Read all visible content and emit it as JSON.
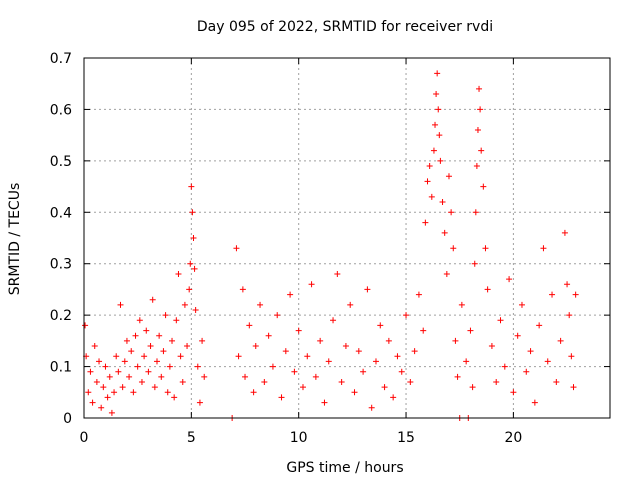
{
  "chart_data": {
    "type": "scatter",
    "title": "Day 095 of 2022, SRMTID for receiver rvdi",
    "xlabel": "GPS time / hours",
    "ylabel": "SRMTID / TECUs",
    "xlim": [
      0,
      24.5
    ],
    "ylim": [
      0,
      0.7
    ],
    "xticks": [
      0,
      5,
      10,
      15,
      20
    ],
    "yticks": [
      0,
      0.1,
      0.2,
      0.3,
      0.4,
      0.5,
      0.6,
      0.7
    ],
    "xtick_labels": [
      "0",
      "5",
      "10",
      "15",
      "20"
    ],
    "ytick_labels": [
      "0",
      "0.1",
      "0.2",
      "0.3",
      "0.4",
      "0.5",
      "0.6",
      "0.7"
    ],
    "grid": true,
    "marker": "+",
    "series": [
      {
        "name": "SRMTID",
        "color": "#ff0000",
        "points": [
          [
            0.05,
            0.18
          ],
          [
            0.1,
            0.12
          ],
          [
            0.2,
            0.05
          ],
          [
            0.3,
            0.09
          ],
          [
            0.4,
            0.03
          ],
          [
            0.5,
            0.14
          ],
          [
            0.6,
            0.07
          ],
          [
            0.7,
            0.11
          ],
          [
            0.8,
            0.02
          ],
          [
            0.9,
            0.06
          ],
          [
            1.0,
            0.1
          ],
          [
            1.1,
            0.04
          ],
          [
            1.2,
            0.08
          ],
          [
            1.3,
            0.01
          ],
          [
            1.4,
            0.05
          ],
          [
            1.5,
            0.12
          ],
          [
            1.6,
            0.09
          ],
          [
            1.7,
            0.22
          ],
          [
            1.8,
            0.06
          ],
          [
            1.9,
            0.11
          ],
          [
            2.0,
            0.15
          ],
          [
            2.1,
            0.08
          ],
          [
            2.2,
            0.13
          ],
          [
            2.3,
            0.05
          ],
          [
            2.4,
            0.16
          ],
          [
            2.5,
            0.1
          ],
          [
            2.6,
            0.19
          ],
          [
            2.7,
            0.07
          ],
          [
            2.8,
            0.12
          ],
          [
            2.9,
            0.17
          ],
          [
            3.0,
            0.09
          ],
          [
            3.1,
            0.14
          ],
          [
            3.2,
            0.23
          ],
          [
            3.3,
            0.06
          ],
          [
            3.4,
            0.11
          ],
          [
            3.5,
            0.16
          ],
          [
            3.6,
            0.08
          ],
          [
            3.7,
            0.13
          ],
          [
            3.8,
            0.2
          ],
          [
            3.9,
            0.05
          ],
          [
            4.0,
            0.1
          ],
          [
            4.1,
            0.15
          ],
          [
            4.2,
            0.04
          ],
          [
            4.3,
            0.19
          ],
          [
            4.4,
            0.28
          ],
          [
            4.5,
            0.12
          ],
          [
            4.6,
            0.07
          ],
          [
            4.7,
            0.22
          ],
          [
            4.8,
            0.14
          ],
          [
            4.9,
            0.25
          ],
          [
            4.95,
            0.3
          ],
          [
            5.0,
            0.45
          ],
          [
            5.05,
            0.4
          ],
          [
            5.1,
            0.35
          ],
          [
            5.15,
            0.29
          ],
          [
            5.2,
            0.21
          ],
          [
            5.3,
            0.1
          ],
          [
            5.4,
            0.03
          ],
          [
            5.5,
            0.15
          ],
          [
            5.6,
            0.08
          ],
          [
            6.9,
            0.0
          ],
          [
            7.1,
            0.33
          ],
          [
            7.2,
            0.12
          ],
          [
            7.4,
            0.25
          ],
          [
            7.5,
            0.08
          ],
          [
            7.7,
            0.18
          ],
          [
            7.9,
            0.05
          ],
          [
            8.0,
            0.14
          ],
          [
            8.2,
            0.22
          ],
          [
            8.4,
            0.07
          ],
          [
            8.6,
            0.16
          ],
          [
            8.8,
            0.1
          ],
          [
            9.0,
            0.2
          ],
          [
            9.2,
            0.04
          ],
          [
            9.4,
            0.13
          ],
          [
            9.6,
            0.24
          ],
          [
            9.8,
            0.09
          ],
          [
            10.0,
            0.17
          ],
          [
            10.2,
            0.06
          ],
          [
            10.4,
            0.12
          ],
          [
            10.6,
            0.26
          ],
          [
            10.8,
            0.08
          ],
          [
            11.0,
            0.15
          ],
          [
            11.2,
            0.03
          ],
          [
            11.4,
            0.11
          ],
          [
            11.6,
            0.19
          ],
          [
            11.8,
            0.28
          ],
          [
            12.0,
            0.07
          ],
          [
            12.2,
            0.14
          ],
          [
            12.4,
            0.22
          ],
          [
            12.6,
            0.05
          ],
          [
            12.8,
            0.13
          ],
          [
            13.0,
            0.09
          ],
          [
            13.2,
            0.25
          ],
          [
            13.4,
            0.02
          ],
          [
            13.6,
            0.11
          ],
          [
            13.8,
            0.18
          ],
          [
            14.0,
            0.06
          ],
          [
            14.2,
            0.15
          ],
          [
            14.4,
            0.04
          ],
          [
            14.6,
            0.12
          ],
          [
            14.8,
            0.09
          ],
          [
            15.0,
            0.2
          ],
          [
            15.2,
            0.07
          ],
          [
            15.4,
            0.13
          ],
          [
            15.6,
            0.24
          ],
          [
            15.8,
            0.17
          ],
          [
            15.9,
            0.38
          ],
          [
            16.0,
            0.46
          ],
          [
            16.1,
            0.49
          ],
          [
            16.2,
            0.43
          ],
          [
            16.3,
            0.52
          ],
          [
            16.35,
            0.57
          ],
          [
            16.4,
            0.63
          ],
          [
            16.45,
            0.67
          ],
          [
            16.5,
            0.6
          ],
          [
            16.55,
            0.55
          ],
          [
            16.6,
            0.5
          ],
          [
            16.7,
            0.42
          ],
          [
            16.8,
            0.36
          ],
          [
            16.9,
            0.28
          ],
          [
            17.0,
            0.47
          ],
          [
            17.1,
            0.4
          ],
          [
            17.2,
            0.33
          ],
          [
            17.3,
            0.15
          ],
          [
            17.4,
            0.08
          ],
          [
            17.5,
            0.0
          ],
          [
            17.6,
            0.22
          ],
          [
            17.8,
            0.11
          ],
          [
            17.9,
            0.0
          ],
          [
            18.0,
            0.17
          ],
          [
            18.1,
            0.06
          ],
          [
            18.2,
            0.3
          ],
          [
            18.25,
            0.4
          ],
          [
            18.3,
            0.49
          ],
          [
            18.35,
            0.56
          ],
          [
            18.4,
            0.64
          ],
          [
            18.45,
            0.6
          ],
          [
            18.5,
            0.52
          ],
          [
            18.6,
            0.45
          ],
          [
            18.7,
            0.33
          ],
          [
            18.8,
            0.25
          ],
          [
            19.0,
            0.14
          ],
          [
            19.2,
            0.07
          ],
          [
            19.4,
            0.19
          ],
          [
            19.6,
            0.1
          ],
          [
            19.8,
            0.27
          ],
          [
            20.0,
            0.05
          ],
          [
            20.2,
            0.16
          ],
          [
            20.4,
            0.22
          ],
          [
            20.6,
            0.09
          ],
          [
            20.8,
            0.13
          ],
          [
            21.0,
            0.03
          ],
          [
            21.2,
            0.18
          ],
          [
            21.4,
            0.33
          ],
          [
            21.6,
            0.11
          ],
          [
            21.8,
            0.24
          ],
          [
            22.0,
            0.07
          ],
          [
            22.2,
            0.15
          ],
          [
            22.4,
            0.36
          ],
          [
            22.5,
            0.26
          ],
          [
            22.6,
            0.2
          ],
          [
            22.7,
            0.12
          ],
          [
            22.8,
            0.06
          ],
          [
            22.9,
            0.24
          ]
        ]
      }
    ]
  }
}
